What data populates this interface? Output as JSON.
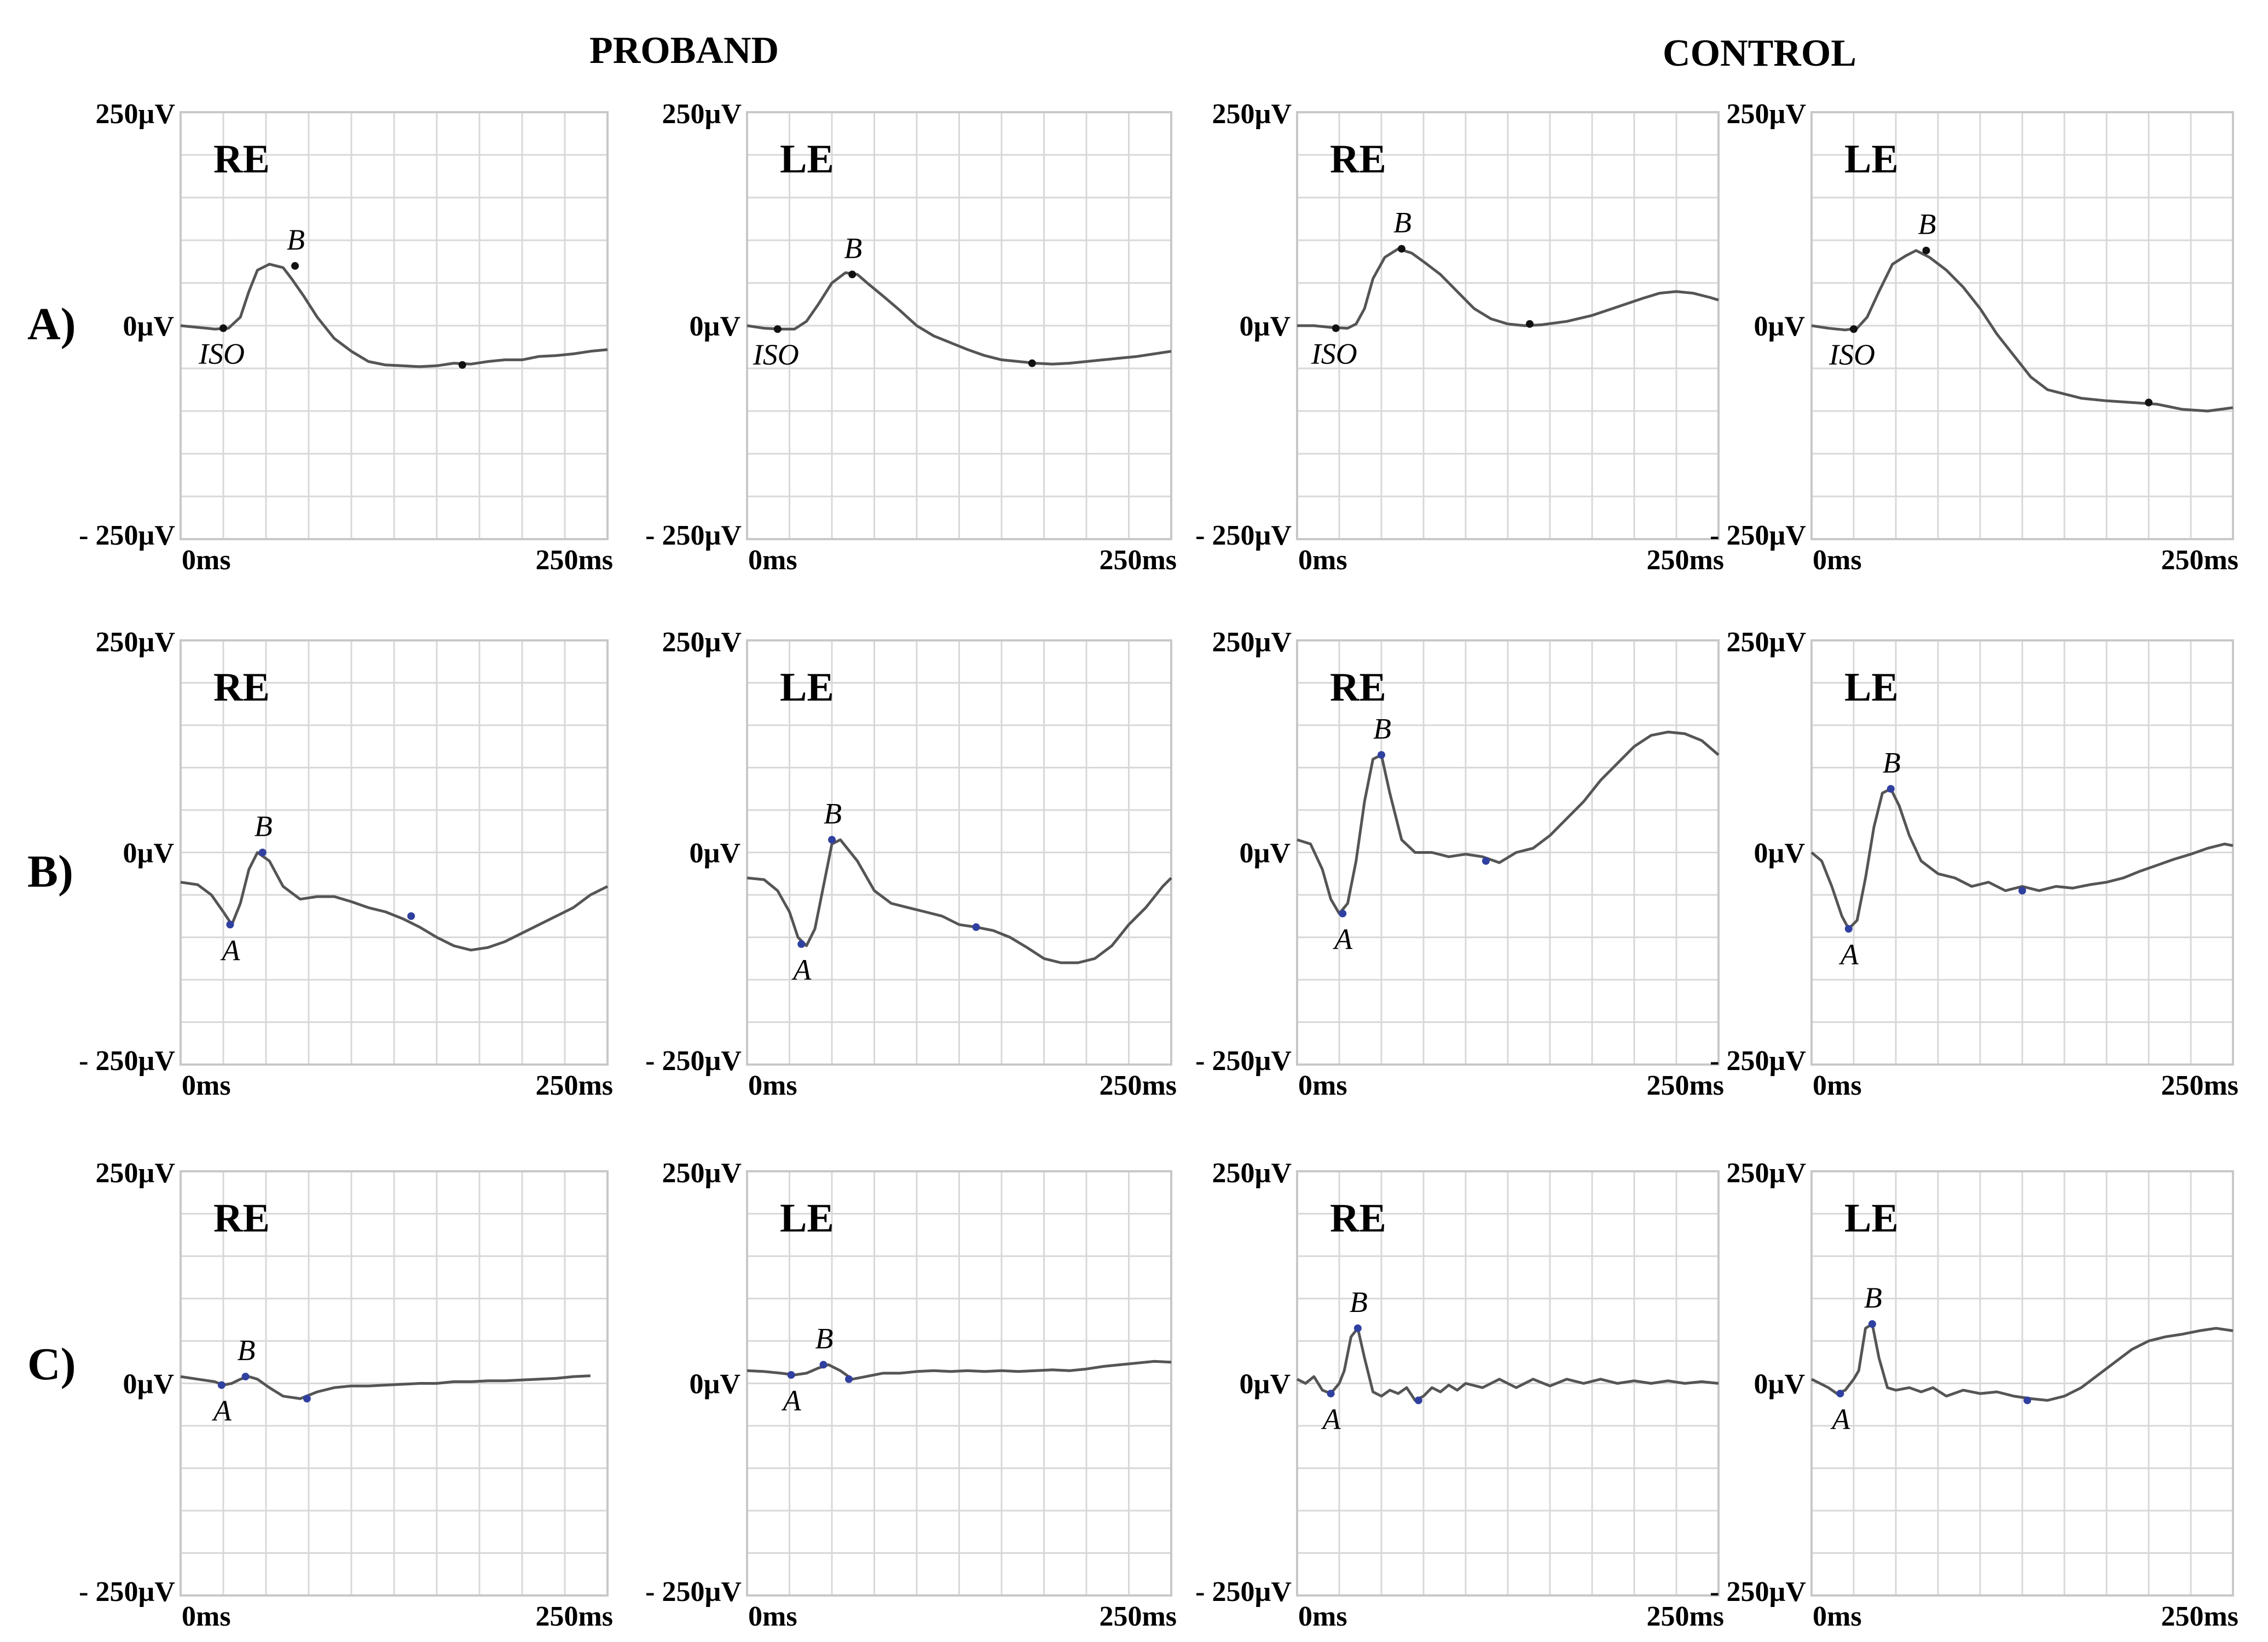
{
  "figure": {
    "group_titles": [
      "PROBAND",
      "CONTROL"
    ],
    "row_labels": [
      "A)",
      "B)",
      "C)"
    ],
    "column_groups": [
      "PROBAND",
      "PROBAND",
      "CONTROL",
      "CONTROL"
    ],
    "colors": {
      "trace": "#555555",
      "grid": "#d8d8d8",
      "marker": "#111111",
      "marker_blue": "#3040a0"
    }
  },
  "chart_data": [
    {
      "type": "line",
      "group": "PROBAND",
      "row": "A)",
      "eye": "RE",
      "ylim": [
        -250,
        250
      ],
      "xlim": [
        0,
        250
      ],
      "y_top_label": "250µV",
      "y_zero_label": "0µV",
      "y_bottom_label": "- 250µV",
      "x_start_label": "0ms",
      "x_end_label": "250ms",
      "x": [
        0,
        10,
        20,
        28,
        35,
        40,
        45,
        52,
        60,
        65,
        72,
        80,
        90,
        100,
        110,
        120,
        130,
        140,
        150,
        160,
        170,
        180,
        190,
        200,
        210,
        220,
        230,
        240,
        250
      ],
      "y": [
        0,
        -2,
        -4,
        -3,
        10,
        40,
        65,
        72,
        68,
        55,
        35,
        10,
        -15,
        -30,
        -42,
        -46,
        -47,
        -48,
        -47,
        -44,
        -45,
        -42,
        -40,
        -40,
        -36,
        -35,
        -33,
        -30,
        -28
      ],
      "markers": [
        {
          "label": "ISO",
          "x": 25,
          "y": -3
        },
        {
          "label": "B",
          "x": 67,
          "y": 70
        },
        {
          "label": "",
          "x": 165,
          "y": -46
        }
      ]
    },
    {
      "type": "line",
      "group": "PROBAND",
      "row": "A)",
      "eye": "LE",
      "ylim": [
        -250,
        250
      ],
      "xlim": [
        0,
        250
      ],
      "y_top_label": "250µV",
      "y_zero_label": "0µV",
      "y_bottom_label": "- 250µV",
      "x_start_label": "0ms",
      "x_end_label": "250ms",
      "x": [
        0,
        10,
        20,
        28,
        35,
        42,
        50,
        58,
        65,
        72,
        80,
        90,
        100,
        110,
        120,
        130,
        140,
        150,
        160,
        170,
        180,
        190,
        200,
        210,
        220,
        230,
        240,
        250
      ],
      "y": [
        0,
        -3,
        -4,
        -4,
        5,
        25,
        50,
        62,
        60,
        48,
        35,
        18,
        0,
        -12,
        -20,
        -28,
        -35,
        -40,
        -42,
        -44,
        -45,
        -44,
        -42,
        -40,
        -38,
        -36,
        -33,
        -30
      ],
      "markers": [
        {
          "label": "ISO",
          "x": 18,
          "y": -4
        },
        {
          "label": "B",
          "x": 62,
          "y": 60
        },
        {
          "label": "",
          "x": 168,
          "y": -44
        }
      ]
    },
    {
      "type": "line",
      "group": "CONTROL",
      "row": "A)",
      "eye": "RE",
      "ylim": [
        -250,
        250
      ],
      "xlim": [
        0,
        250
      ],
      "y_top_label": "250µV",
      "y_zero_label": "0µV",
      "y_bottom_label": "- 250µV",
      "x_start_label": "0ms",
      "x_end_label": "250ms",
      "x": [
        0,
        10,
        20,
        30,
        35,
        40,
        45,
        52,
        60,
        68,
        75,
        85,
        95,
        105,
        115,
        125,
        135,
        145,
        160,
        175,
        190,
        205,
        215,
        225,
        235,
        245,
        250
      ],
      "y": [
        0,
        0,
        -2,
        -3,
        2,
        20,
        55,
        80,
        90,
        85,
        75,
        60,
        40,
        20,
        8,
        2,
        0,
        1,
        5,
        12,
        22,
        32,
        38,
        40,
        38,
        33,
        30
      ],
      "markers": [
        {
          "label": "ISO",
          "x": 23,
          "y": -3
        },
        {
          "label": "B",
          "x": 62,
          "y": 90
        },
        {
          "label": "",
          "x": 138,
          "y": 2
        }
      ]
    },
    {
      "type": "line",
      "group": "CONTROL",
      "row": "A)",
      "eye": "LE",
      "ylim": [
        -250,
        250
      ],
      "xlim": [
        0,
        250
      ],
      "y_top_label": "250µV",
      "y_zero_label": "0µV",
      "y_bottom_label": "- 250µV",
      "x_start_label": "0ms",
      "x_end_label": "250ms",
      "x": [
        0,
        10,
        20,
        27,
        33,
        40,
        48,
        56,
        62,
        70,
        80,
        90,
        100,
        110,
        120,
        130,
        140,
        150,
        160,
        175,
        190,
        205,
        220,
        235,
        250
      ],
      "y": [
        0,
        -3,
        -5,
        -3,
        10,
        40,
        72,
        82,
        88,
        80,
        65,
        45,
        20,
        -10,
        -35,
        -60,
        -75,
        -80,
        -85,
        -88,
        -90,
        -92,
        -98,
        -100,
        -96
      ],
      "markers": [
        {
          "label": "ISO",
          "x": 25,
          "y": -4
        },
        {
          "label": "B",
          "x": 68,
          "y": 88
        },
        {
          "label": "",
          "x": 200,
          "y": -90
        }
      ]
    },
    {
      "type": "line",
      "group": "PROBAND",
      "row": "B)",
      "eye": "RE",
      "ylim": [
        -250,
        250
      ],
      "xlim": [
        0,
        250
      ],
      "y_top_label": "250µV",
      "y_zero_label": "0µV",
      "y_bottom_label": "- 250µV",
      "x_start_label": "0ms",
      "x_end_label": "250ms",
      "x": [
        0,
        10,
        18,
        25,
        30,
        35,
        40,
        45,
        52,
        60,
        70,
        80,
        90,
        100,
        110,
        120,
        130,
        140,
        150,
        160,
        170,
        180,
        190,
        200,
        210,
        220,
        230,
        240,
        250
      ],
      "y": [
        -35,
        -38,
        -50,
        -70,
        -85,
        -60,
        -20,
        0,
        -10,
        -40,
        -55,
        -52,
        -52,
        -58,
        -65,
        -70,
        -78,
        -88,
        -100,
        -110,
        -115,
        -112,
        -105,
        -95,
        -85,
        -75,
        -65,
        -50,
        -40
      ],
      "markers": [
        {
          "label": "A",
          "x": 29,
          "y": -85
        },
        {
          "label": "B",
          "x": 48,
          "y": 0
        },
        {
          "label": "",
          "x": 135,
          "y": -75
        }
      ]
    },
    {
      "type": "line",
      "group": "PROBAND",
      "row": "B)",
      "eye": "LE",
      "ylim": [
        -250,
        250
      ],
      "xlim": [
        0,
        250
      ],
      "y_top_label": "250µV",
      "y_zero_label": "0µV",
      "y_bottom_label": "- 250µV",
      "x_start_label": "0ms",
      "x_end_label": "250ms",
      "x": [
        0,
        10,
        18,
        25,
        30,
        35,
        40,
        45,
        50,
        55,
        65,
        75,
        85,
        95,
        105,
        115,
        125,
        135,
        145,
        155,
        165,
        175,
        185,
        195,
        205,
        215,
        225,
        235,
        245,
        250
      ],
      "y": [
        -30,
        -32,
        -45,
        -70,
        -100,
        -110,
        -90,
        -40,
        10,
        15,
        -10,
        -45,
        -60,
        -65,
        -70,
        -75,
        -85,
        -88,
        -92,
        -100,
        -112,
        -125,
        -130,
        -130,
        -125,
        -110,
        -85,
        -65,
        -40,
        -30
      ],
      "markers": [
        {
          "label": "A",
          "x": 32,
          "y": -108
        },
        {
          "label": "B",
          "x": 50,
          "y": 15
        },
        {
          "label": "",
          "x": 135,
          "y": -88
        }
      ]
    },
    {
      "type": "line",
      "group": "CONTROL",
      "row": "B)",
      "eye": "RE",
      "ylim": [
        -250,
        250
      ],
      "xlim": [
        0,
        250
      ],
      "y_top_label": "250µV",
      "y_zero_label": "0µV",
      "y_bottom_label": "- 250µV",
      "x_start_label": "0ms",
      "x_end_label": "250ms",
      "x": [
        0,
        8,
        15,
        20,
        25,
        30,
        35,
        40,
        45,
        50,
        55,
        62,
        70,
        80,
        90,
        100,
        110,
        120,
        130,
        140,
        150,
        160,
        170,
        180,
        190,
        200,
        210,
        220,
        230,
        240,
        250
      ],
      "y": [
        15,
        10,
        -20,
        -55,
        -72,
        -60,
        -10,
        60,
        110,
        115,
        70,
        15,
        0,
        0,
        -5,
        -2,
        -5,
        -12,
        0,
        5,
        20,
        40,
        60,
        85,
        105,
        125,
        138,
        142,
        140,
        132,
        115
      ],
      "markers": [
        {
          "label": "A",
          "x": 27,
          "y": -72
        },
        {
          "label": "B",
          "x": 50,
          "y": 115
        },
        {
          "label": "",
          "x": 112,
          "y": -10
        }
      ]
    },
    {
      "type": "line",
      "group": "CONTROL",
      "row": "B)",
      "eye": "LE",
      "ylim": [
        -250,
        250
      ],
      "xlim": [
        0,
        250
      ],
      "y_top_label": "250µV",
      "y_zero_label": "0µV",
      "y_bottom_label": "- 250µV",
      "x_start_label": "0ms",
      "x_end_label": "250ms",
      "x": [
        0,
        6,
        12,
        18,
        22,
        27,
        32,
        37,
        42,
        47,
        52,
        58,
        65,
        75,
        85,
        95,
        105,
        115,
        125,
        135,
        145,
        155,
        165,
        175,
        185,
        195,
        205,
        215,
        225,
        235,
        245,
        250
      ],
      "y": [
        0,
        -10,
        -40,
        -75,
        -90,
        -80,
        -30,
        30,
        70,
        75,
        55,
        20,
        -10,
        -25,
        -30,
        -40,
        -35,
        -45,
        -40,
        -45,
        -40,
        -42,
        -38,
        -35,
        -30,
        -22,
        -15,
        -8,
        -2,
        5,
        10,
        8
      ],
      "markers": [
        {
          "label": "A",
          "x": 22,
          "y": -90
        },
        {
          "label": "B",
          "x": 47,
          "y": 75
        },
        {
          "label": "",
          "x": 125,
          "y": -45
        }
      ]
    },
    {
      "type": "line",
      "group": "PROBAND",
      "row": "C)",
      "eye": "RE",
      "ylim": [
        -250,
        250
      ],
      "xlim": [
        0,
        250
      ],
      "y_top_label": "250µV",
      "y_zero_label": "0µV",
      "y_bottom_label": "- 250µV",
      "x_start_label": "0ms",
      "x_end_label": "250ms",
      "x": [
        0,
        10,
        20,
        25,
        30,
        35,
        40,
        45,
        52,
        60,
        70,
        80,
        90,
        100,
        110,
        120,
        130,
        140,
        150,
        160,
        170,
        180,
        190,
        200,
        210,
        220,
        230,
        240
      ],
      "y": [
        8,
        5,
        2,
        -2,
        0,
        5,
        8,
        5,
        -5,
        -15,
        -18,
        -10,
        -5,
        -3,
        -3,
        -2,
        -1,
        0,
        0,
        2,
        2,
        3,
        3,
        4,
        5,
        6,
        8,
        9
      ],
      "markers": [
        {
          "label": "A",
          "x": 24,
          "y": -2
        },
        {
          "label": "B",
          "x": 38,
          "y": 8
        },
        {
          "label": "",
          "x": 74,
          "y": -18
        }
      ]
    },
    {
      "type": "line",
      "group": "PROBAND",
      "row": "C)",
      "eye": "LE",
      "ylim": [
        -250,
        250
      ],
      "xlim": [
        0,
        250
      ],
      "y_top_label": "250µV",
      "y_zero_label": "0µV",
      "y_bottom_label": "- 250µV",
      "x_start_label": "0ms",
      "x_end_label": "250ms",
      "x": [
        0,
        10,
        20,
        28,
        35,
        42,
        48,
        55,
        62,
        70,
        80,
        90,
        100,
        110,
        120,
        130,
        140,
        150,
        160,
        170,
        180,
        190,
        200,
        210,
        220,
        230,
        240,
        250
      ],
      "y": [
        15,
        14,
        12,
        10,
        12,
        18,
        22,
        15,
        5,
        8,
        12,
        12,
        14,
        15,
        14,
        15,
        14,
        15,
        14,
        15,
        16,
        15,
        17,
        20,
        22,
        24,
        26,
        25
      ],
      "markers": [
        {
          "label": "A",
          "x": 26,
          "y": 10
        },
        {
          "label": "B",
          "x": 45,
          "y": 22
        },
        {
          "label": "",
          "x": 60,
          "y": 5
        }
      ]
    },
    {
      "type": "line",
      "group": "CONTROL",
      "row": "C)",
      "eye": "RE",
      "ylim": [
        -250,
        250
      ],
      "xlim": [
        0,
        250
      ],
      "y_top_label": "250µV",
      "y_zero_label": "0µV",
      "y_bottom_label": "- 250µV",
      "x_start_label": "0ms",
      "x_end_label": "250ms",
      "x": [
        0,
        5,
        10,
        15,
        20,
        25,
        28,
        32,
        36,
        40,
        45,
        50,
        55,
        60,
        65,
        70,
        75,
        80,
        85,
        90,
        95,
        100,
        110,
        120,
        130,
        140,
        150,
        160,
        170,
        180,
        190,
        200,
        210,
        220,
        230,
        240,
        250
      ],
      "y": [
        5,
        0,
        8,
        -8,
        -12,
        0,
        15,
        55,
        65,
        30,
        -10,
        -15,
        -8,
        -12,
        -5,
        -20,
        -15,
        -5,
        -10,
        -2,
        -8,
        0,
        -5,
        5,
        -5,
        5,
        -3,
        5,
        0,
        5,
        0,
        3,
        0,
        3,
        0,
        2,
        0
      ],
      "markers": [
        {
          "label": "A",
          "x": 20,
          "y": -12
        },
        {
          "label": "B",
          "x": 36,
          "y": 65
        },
        {
          "label": "",
          "x": 72,
          "y": -20
        }
      ]
    },
    {
      "type": "line",
      "group": "CONTROL",
      "row": "C)",
      "eye": "LE",
      "ylim": [
        -250,
        250
      ],
      "xlim": [
        0,
        250
      ],
      "y_top_label": "250µV",
      "y_zero_label": "0µV",
      "y_bottom_label": "- 250µV",
      "x_start_label": "0ms",
      "x_end_label": "250ms",
      "x": [
        0,
        5,
        10,
        15,
        20,
        25,
        28,
        32,
        36,
        40,
        45,
        50,
        58,
        65,
        72,
        80,
        90,
        100,
        110,
        120,
        130,
        140,
        150,
        160,
        170,
        180,
        190,
        200,
        210,
        220,
        230,
        240,
        250
      ],
      "y": [
        5,
        0,
        -5,
        -12,
        -8,
        5,
        15,
        65,
        70,
        30,
        -5,
        -8,
        -5,
        -10,
        -5,
        -15,
        -8,
        -12,
        -10,
        -15,
        -18,
        -20,
        -15,
        -5,
        10,
        25,
        40,
        50,
        55,
        58,
        62,
        65,
        62
      ],
      "markers": [
        {
          "label": "A",
          "x": 17,
          "y": -12
        },
        {
          "label": "B",
          "x": 36,
          "y": 70
        },
        {
          "label": "",
          "x": 128,
          "y": -20
        }
      ]
    }
  ]
}
